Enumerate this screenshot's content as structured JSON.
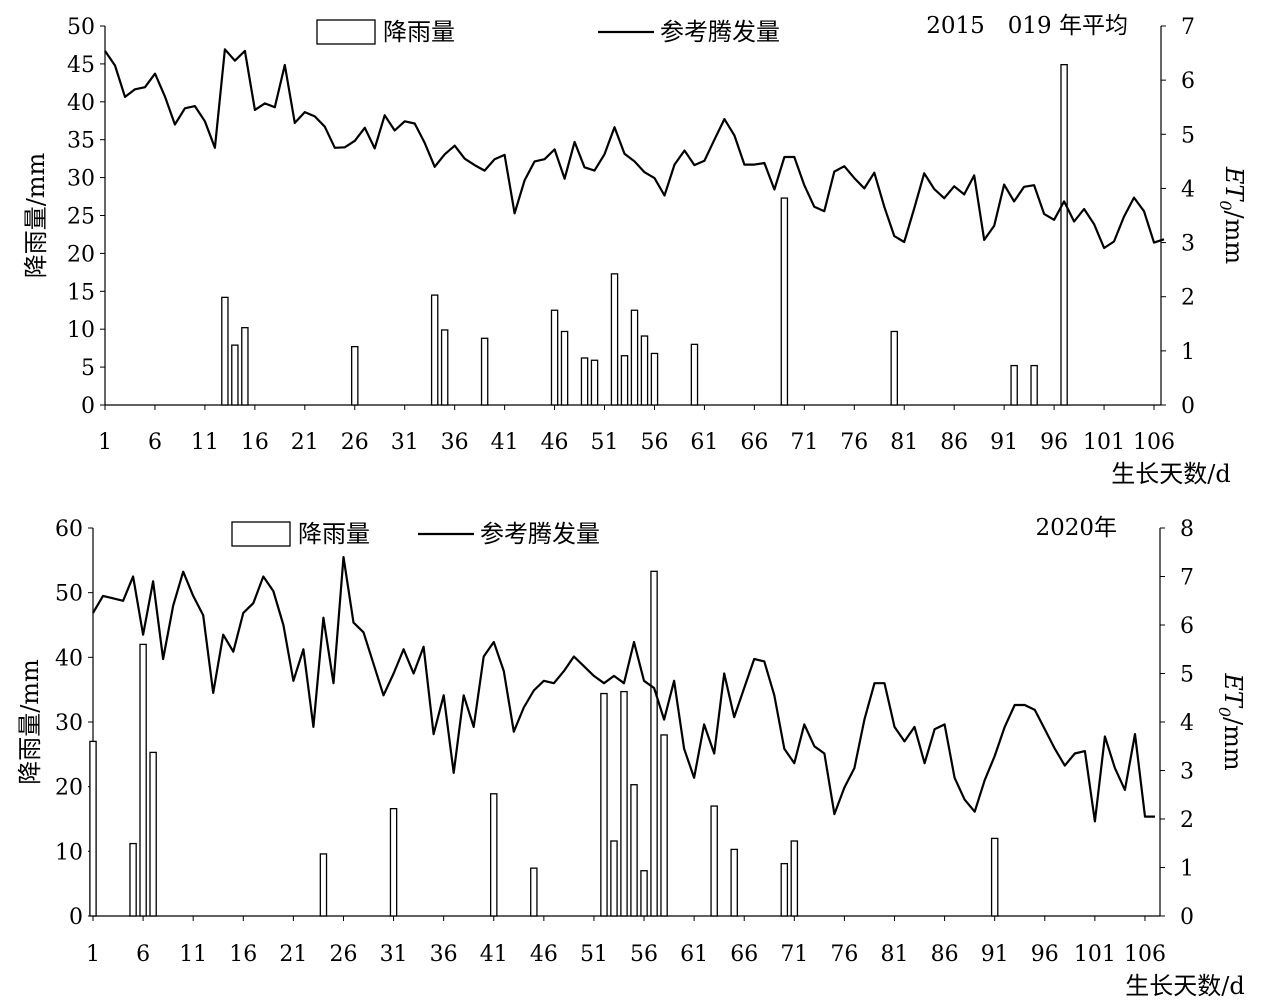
{
  "chart_data": [
    {
      "type": "bar+line",
      "annotation": "2015　019 年平均",
      "legend": {
        "bar_label": "降雨量",
        "line_label": "参考腾发量"
      },
      "xlabel": "生长天数/d",
      "ylabel_left": "降雨量/mm",
      "ylabel_right": {
        "italic": "ET",
        "sub": "0",
        "rest": "/mm"
      },
      "x_ticks": [
        1,
        6,
        11,
        16,
        21,
        26,
        31,
        36,
        41,
        46,
        51,
        56,
        61,
        66,
        71,
        76,
        81,
        86,
        91,
        96,
        101,
        106
      ],
      "y_left_ticks": [
        0,
        5,
        10,
        15,
        20,
        25,
        30,
        35,
        40,
        45,
        50
      ],
      "y_right_ticks": [
        0,
        1,
        2,
        3,
        4,
        5,
        6,
        7
      ],
      "x_range": [
        1,
        106.7
      ],
      "y_left_range": [
        0,
        50
      ],
      "y_right_range": [
        0,
        7
      ],
      "rainfall": [
        {
          "day": 13,
          "value": 14.2
        },
        {
          "day": 14,
          "value": 7.9
        },
        {
          "day": 15,
          "value": 10.2
        },
        {
          "day": 26,
          "value": 7.7
        },
        {
          "day": 34,
          "value": 14.5
        },
        {
          "day": 35,
          "value": 9.9
        },
        {
          "day": 39,
          "value": 8.8
        },
        {
          "day": 46,
          "value": 12.5
        },
        {
          "day": 47,
          "value": 9.7
        },
        {
          "day": 49,
          "value": 6.2
        },
        {
          "day": 50,
          "value": 5.9
        },
        {
          "day": 52,
          "value": 17.3
        },
        {
          "day": 53,
          "value": 6.5
        },
        {
          "day": 54,
          "value": 12.5
        },
        {
          "day": 55,
          "value": 9.1
        },
        {
          "day": 56,
          "value": 6.8
        },
        {
          "day": 60,
          "value": 8.0
        },
        {
          "day": 69,
          "value": 27.3
        },
        {
          "day": 80,
          "value": 9.7
        },
        {
          "day": 92,
          "value": 5.2
        },
        {
          "day": 94,
          "value": 5.2
        },
        {
          "day": 97,
          "value": 44.9
        }
      ],
      "et0": [
        6.54,
        6.27,
        5.69,
        5.83,
        5.87,
        6.12,
        5.7,
        5.18,
        5.48,
        5.52,
        5.24,
        4.75,
        6.57,
        6.36,
        6.54,
        5.45,
        5.57,
        5.5,
        6.28,
        5.21,
        5.41,
        5.33,
        5.14,
        4.75,
        4.76,
        4.88,
        5.12,
        4.74,
        5.35,
        5.07,
        5.24,
        5.2,
        4.84,
        4.4,
        4.63,
        4.79,
        4.55,
        4.43,
        4.33,
        4.54,
        4.62,
        3.54,
        4.15,
        4.5,
        4.54,
        4.72,
        4.18,
        4.86,
        4.39,
        4.33,
        4.63,
        5.13,
        4.64,
        4.5,
        4.3,
        4.19,
        3.87,
        4.44,
        4.7,
        4.43,
        4.51,
        4.9,
        5.28,
        4.98,
        4.44,
        4.44,
        4.47,
        3.98,
        4.58,
        4.58,
        4.06,
        3.66,
        3.58,
        4.31,
        4.41,
        4.19,
        4.0,
        4.29,
        3.66,
        3.12,
        3.01,
        3.63,
        4.28,
        3.99,
        3.82,
        4.04,
        3.89,
        4.24,
        3.05,
        3.31,
        4.07,
        3.76,
        4.03,
        4.06,
        3.53,
        3.42,
        3.76,
        3.39,
        3.62,
        3.34,
        2.9,
        3.02,
        3.48,
        3.83,
        3.58,
        3.0,
        3.06
      ]
    },
    {
      "type": "bar+line",
      "annotation": "2020年",
      "legend": {
        "bar_label": "降雨量",
        "line_label": "参考腾发量"
      },
      "xlabel": "生长天数/d",
      "ylabel_left": "降雨量/mm",
      "ylabel_right": {
        "italic": "ET",
        "sub": "0",
        "rest": "/mm"
      },
      "x_ticks": [
        1,
        6,
        11,
        16,
        21,
        26,
        31,
        36,
        41,
        46,
        51,
        56,
        61,
        66,
        71,
        76,
        81,
        86,
        91,
        96,
        101,
        106
      ],
      "y_left_ticks": [
        0,
        10,
        20,
        30,
        40,
        50,
        60
      ],
      "y_right_ticks": [
        0,
        1,
        2,
        3,
        4,
        5,
        6,
        7,
        8
      ],
      "x_range": [
        1,
        107.5
      ],
      "y_left_range": [
        0,
        60
      ],
      "y_right_range": [
        0,
        8
      ],
      "rainfall": [
        {
          "day": 1,
          "value": 27.0
        },
        {
          "day": 5,
          "value": 11.2
        },
        {
          "day": 6,
          "value": 42.0
        },
        {
          "day": 7,
          "value": 25.3
        },
        {
          "day": 24,
          "value": 9.6
        },
        {
          "day": 31,
          "value": 16.6
        },
        {
          "day": 41,
          "value": 18.9
        },
        {
          "day": 45,
          "value": 7.4
        },
        {
          "day": 52,
          "value": 34.4
        },
        {
          "day": 53,
          "value": 11.6
        },
        {
          "day": 54,
          "value": 34.7
        },
        {
          "day": 55,
          "value": 20.3
        },
        {
          "day": 56,
          "value": 7.0
        },
        {
          "day": 57,
          "value": 53.3
        },
        {
          "day": 58,
          "value": 28.0
        },
        {
          "day": 63,
          "value": 17.0
        },
        {
          "day": 65,
          "value": 10.3
        },
        {
          "day": 70,
          "value": 8.1
        },
        {
          "day": 71,
          "value": 11.6
        },
        {
          "day": 91,
          "value": 12.0
        }
      ],
      "et0": [
        6.25,
        6.6,
        6.55,
        6.5,
        7.0,
        5.8,
        6.9,
        5.3,
        6.4,
        7.1,
        6.6,
        6.2,
        4.6,
        5.8,
        5.45,
        6.25,
        6.45,
        7.0,
        6.7,
        6.0,
        4.85,
        5.5,
        3.9,
        6.15,
        4.8,
        7.4,
        6.05,
        5.85,
        5.2,
        4.55,
        5.0,
        5.5,
        5.0,
        5.55,
        3.75,
        4.55,
        2.95,
        4.55,
        3.9,
        5.35,
        5.65,
        5.05,
        3.8,
        4.3,
        4.65,
        4.85,
        4.8,
        5.05,
        5.35,
        5.15,
        4.95,
        4.8,
        4.95,
        4.8,
        5.65,
        4.85,
        4.7,
        4.05,
        4.85,
        3.45,
        2.85,
        3.95,
        3.35,
        5.0,
        4.1,
        4.7,
        5.3,
        5.25,
        4.55,
        3.45,
        3.15,
        3.95,
        3.5,
        3.35,
        2.1,
        2.65,
        3.05,
        4.05,
        4.8,
        4.8,
        3.9,
        3.6,
        3.9,
        3.15,
        3.85,
        3.95,
        2.85,
        2.4,
        2.15,
        2.8,
        3.3,
        3.9,
        4.35,
        4.35,
        4.25,
        3.85,
        3.45,
        3.1,
        3.35,
        3.4,
        1.95,
        3.7,
        3.05,
        2.6,
        3.75,
        2.05,
        2.05
      ]
    }
  ]
}
